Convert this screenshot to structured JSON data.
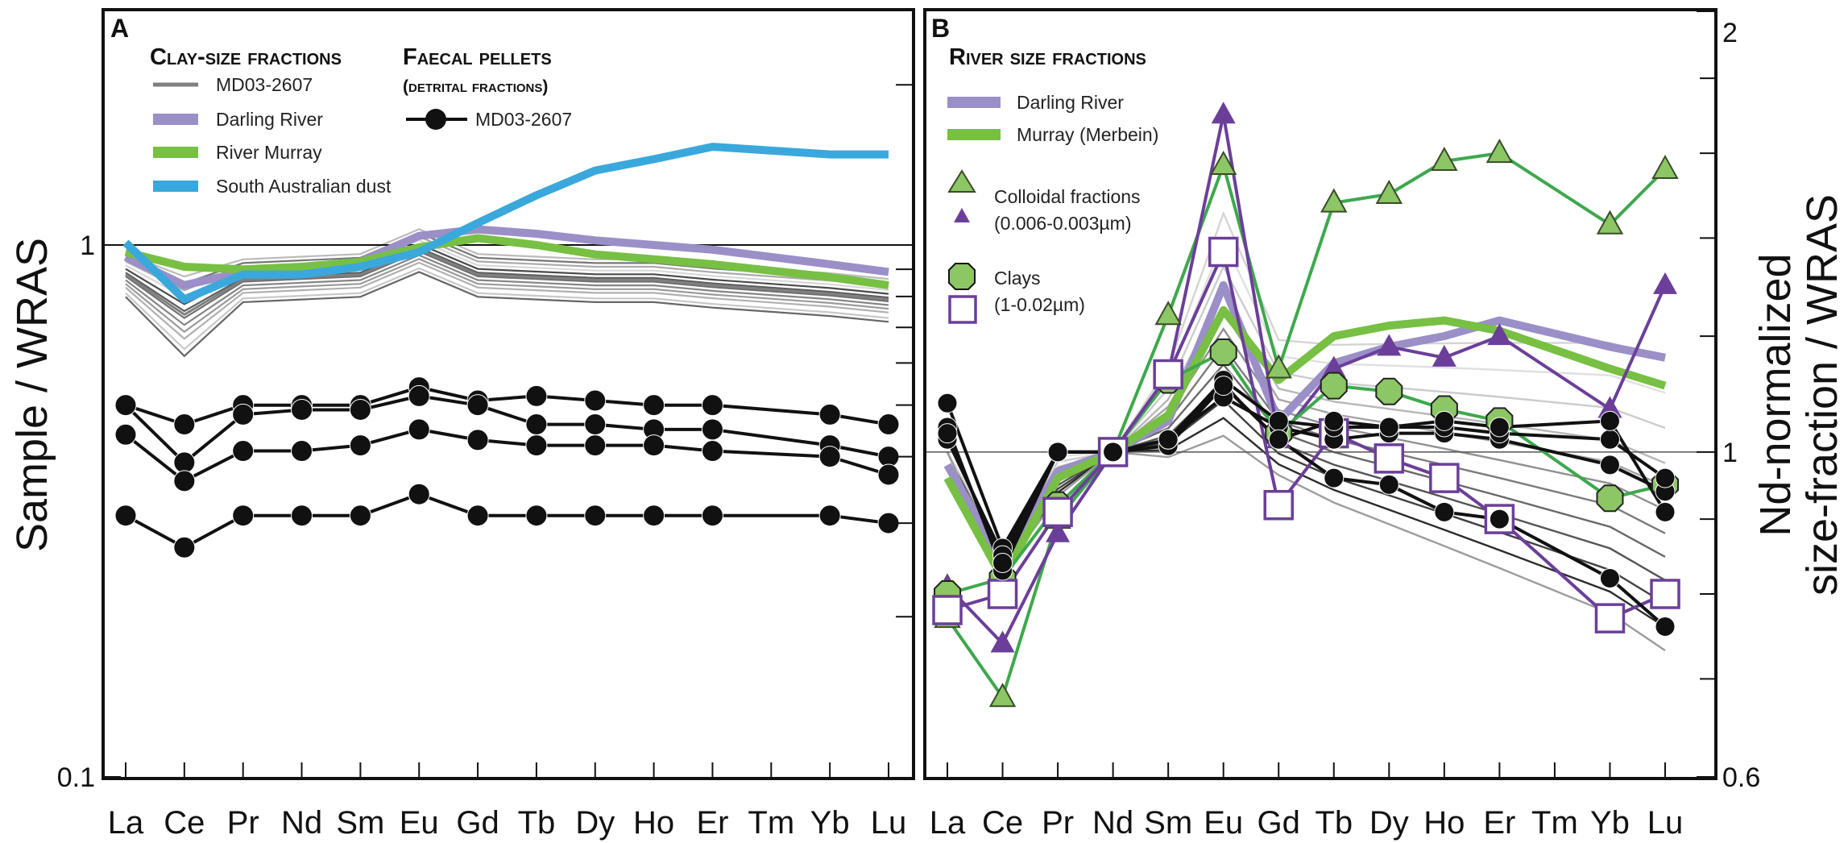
{
  "chart_data": [
    {
      "panel": "A",
      "type": "line",
      "y_scale": "log",
      "ylabel": "Sample / WRAS",
      "ylim": [
        0.1,
        2.75
      ],
      "y_ticks": [
        0.1,
        1
      ],
      "y_tick_labels": [
        "0.1",
        "1"
      ],
      "x_tick_labels": [
        "La",
        "Ce",
        "Pr",
        "Nd",
        "Sm",
        "Eu",
        "Gd",
        "Tb",
        "Dy",
        "Ho",
        "Er",
        "Tm",
        "Yb",
        "Lu"
      ],
      "legend_clay_title": "Clay-size fractions",
      "legend_faecal_title": "Faecal pellets",
      "legend_faecal_subtitle": "(detrital fractions)",
      "series": [
        {
          "name": "MD03-2607",
          "group": "clay",
          "color": "#808080",
          "legend_label": "MD03-2607",
          "values": [
            0.88,
            0.74,
            0.86,
            0.87,
            0.88,
            0.98,
            0.88,
            0.87,
            0.86,
            0.86,
            0.84,
            null,
            0.81,
            0.79
          ]
        },
        {
          "name": "Darling River",
          "group": "clay",
          "color": "#9b8fc8",
          "legend_label": "Darling River",
          "values": [
            0.95,
            0.84,
            0.89,
            0.9,
            0.93,
            1.04,
            1.07,
            1.05,
            1.02,
            1.0,
            0.98,
            null,
            0.92,
            0.89
          ]
        },
        {
          "name": "River Murray",
          "group": "clay",
          "color": "#77c043",
          "legend_label": "River Murray",
          "values": [
            0.97,
            0.91,
            0.9,
            0.91,
            0.93,
            0.99,
            1.03,
            1.0,
            0.96,
            0.94,
            0.92,
            null,
            0.87,
            0.84
          ]
        },
        {
          "name": "South Australian dust",
          "group": "clay",
          "color": "#3aa8dc",
          "legend_label": "South Australian dust",
          "values": [
            1.01,
            0.79,
            0.88,
            0.88,
            0.91,
            0.97,
            1.1,
            1.24,
            1.38,
            1.45,
            1.53,
            null,
            1.48,
            1.48
          ]
        },
        {
          "name": "MD03-2607 faecal 1",
          "group": "faecal",
          "color": "#111111",
          "legend_label": "MD03-2607",
          "values": [
            0.5,
            0.46,
            0.5,
            0.5,
            0.5,
            0.54,
            0.51,
            0.52,
            0.51,
            0.5,
            0.5,
            null,
            0.48,
            0.46
          ]
        },
        {
          "name": "MD03-2607 faecal 2",
          "group": "faecal",
          "color": "#111111",
          "values": [
            0.5,
            0.39,
            0.48,
            0.49,
            0.49,
            0.52,
            0.5,
            0.46,
            0.46,
            0.45,
            0.45,
            null,
            0.42,
            0.4
          ]
        },
        {
          "name": "MD03-2607 faecal 3",
          "group": "faecal",
          "color": "#111111",
          "values": [
            0.44,
            0.36,
            0.41,
            0.41,
            0.42,
            0.45,
            0.43,
            0.42,
            0.42,
            0.42,
            0.41,
            null,
            0.4,
            0.37
          ]
        },
        {
          "name": "MD03-2607 faecal 4",
          "group": "faecal",
          "color": "#111111",
          "values": [
            0.31,
            0.27,
            0.31,
            0.31,
            0.31,
            0.34,
            0.31,
            0.31,
            0.31,
            0.31,
            0.31,
            null,
            0.31,
            0.3
          ]
        }
      ]
    },
    {
      "panel": "B",
      "type": "line",
      "y_scale": "log",
      "ylabel_line1": "Nd-normalized",
      "ylabel_line2": "size-fraction / WRAS",
      "ylim": [
        0.6,
        2.0
      ],
      "y_ticks": [
        0.6,
        1,
        2
      ],
      "y_tick_labels": [
        "0.6",
        "1",
        "2"
      ],
      "x_tick_labels": [
        "La",
        "Ce",
        "Pr",
        "Nd",
        "Sm",
        "Eu",
        "Gd",
        "Tb",
        "Dy",
        "Ho",
        "Er",
        "Tm",
        "Yb",
        "Lu"
      ],
      "legend_title": "River size fractions",
      "series": [
        {
          "name": "Darling River",
          "color": "#9b8fc8",
          "legend_label": "Darling River",
          "values": [
            0.98,
            0.84,
            0.97,
            1.0,
            1.05,
            1.3,
            1.05,
            1.15,
            1.18,
            1.2,
            1.23,
            null,
            1.18,
            1.16
          ]
        },
        {
          "name": "Murray (Merbein)",
          "color": "#77c043",
          "legend_label": "Murray (Merbein)",
          "values": [
            0.96,
            0.82,
            0.96,
            1.0,
            1.06,
            1.25,
            1.12,
            1.2,
            1.22,
            1.23,
            1.21,
            null,
            1.14,
            1.11
          ]
        },
        {
          "name": "Colloidal fractions (green)",
          "color": "#3ea84d",
          "marker": "triangle",
          "marker_fill": "#8cc665",
          "legend_label": "Colloidal fractions",
          "values": [
            0.77,
            0.68,
            0.9,
            1.0,
            1.24,
            1.57,
            1.14,
            1.48,
            1.5,
            1.58,
            1.6,
            null,
            1.43,
            1.56
          ]
        },
        {
          "name": "Colloidal fractions (purple)",
          "color": "#6b3f99",
          "marker": "triangle",
          "marker_fill": "#6b3f99",
          "legend_label": "(0.006-0.003µm)",
          "values": [
            0.81,
            0.74,
            0.88,
            1.0,
            1.13,
            1.7,
            1.02,
            1.14,
            1.18,
            1.16,
            1.2,
            null,
            1.07,
            1.3
          ]
        },
        {
          "name": "Clays",
          "color": "#3ea84d",
          "marker": "octagon",
          "marker_fill": "#8cc665",
          "legend_label": "Clays",
          "values": [
            0.8,
            0.82,
            0.92,
            1.0,
            1.12,
            1.17,
            1.03,
            1.11,
            1.1,
            1.07,
            1.05,
            null,
            0.93,
            0.95
          ]
        },
        {
          "name": "Clays (1-0.02µm)",
          "color": "#6b3f99",
          "marker": "square",
          "marker_fill": "#ffffff",
          "legend_label": "(1-0.02µm)",
          "values": [
            0.78,
            0.8,
            0.91,
            1.0,
            1.13,
            1.37,
            0.92,
            1.03,
            0.99,
            0.96,
            0.9,
            null,
            0.77,
            0.8
          ]
        },
        {
          "name": "MD03-2607 faecal 1",
          "color": "#111111",
          "marker": "circle",
          "marker_fill": "#111111",
          "values": [
            1.08,
            0.86,
            1.0,
            1.0,
            1.01,
            1.11,
            1.02,
            0.96,
            0.95,
            0.91,
            0.9,
            null,
            0.82,
            0.76
          ]
        },
        {
          "name": "MD03-2607 faecal 2",
          "color": "#111111",
          "marker": "circle",
          "marker_fill": "#111111",
          "values": [
            1.04,
            0.83,
            1.0,
            1.0,
            1.02,
            1.09,
            1.04,
            1.02,
            1.03,
            1.03,
            1.02,
            null,
            0.98,
            0.94
          ]
        },
        {
          "name": "MD03-2607 faecal 3",
          "color": "#111111",
          "marker": "circle",
          "marker_fill": "#111111",
          "values": [
            1.02,
            0.85,
            1.0,
            1.0,
            1.02,
            1.12,
            1.05,
            1.04,
            1.04,
            1.04,
            1.03,
            null,
            1.02,
            0.96
          ]
        },
        {
          "name": "MD03-2607 faecal 4",
          "color": "#111111",
          "marker": "circle",
          "marker_fill": "#111111",
          "values": [
            1.03,
            0.84,
            1.0,
            1.0,
            1.02,
            1.11,
            1.02,
            1.05,
            1.04,
            1.05,
            1.04,
            null,
            1.05,
            0.91
          ]
        }
      ]
    }
  ]
}
